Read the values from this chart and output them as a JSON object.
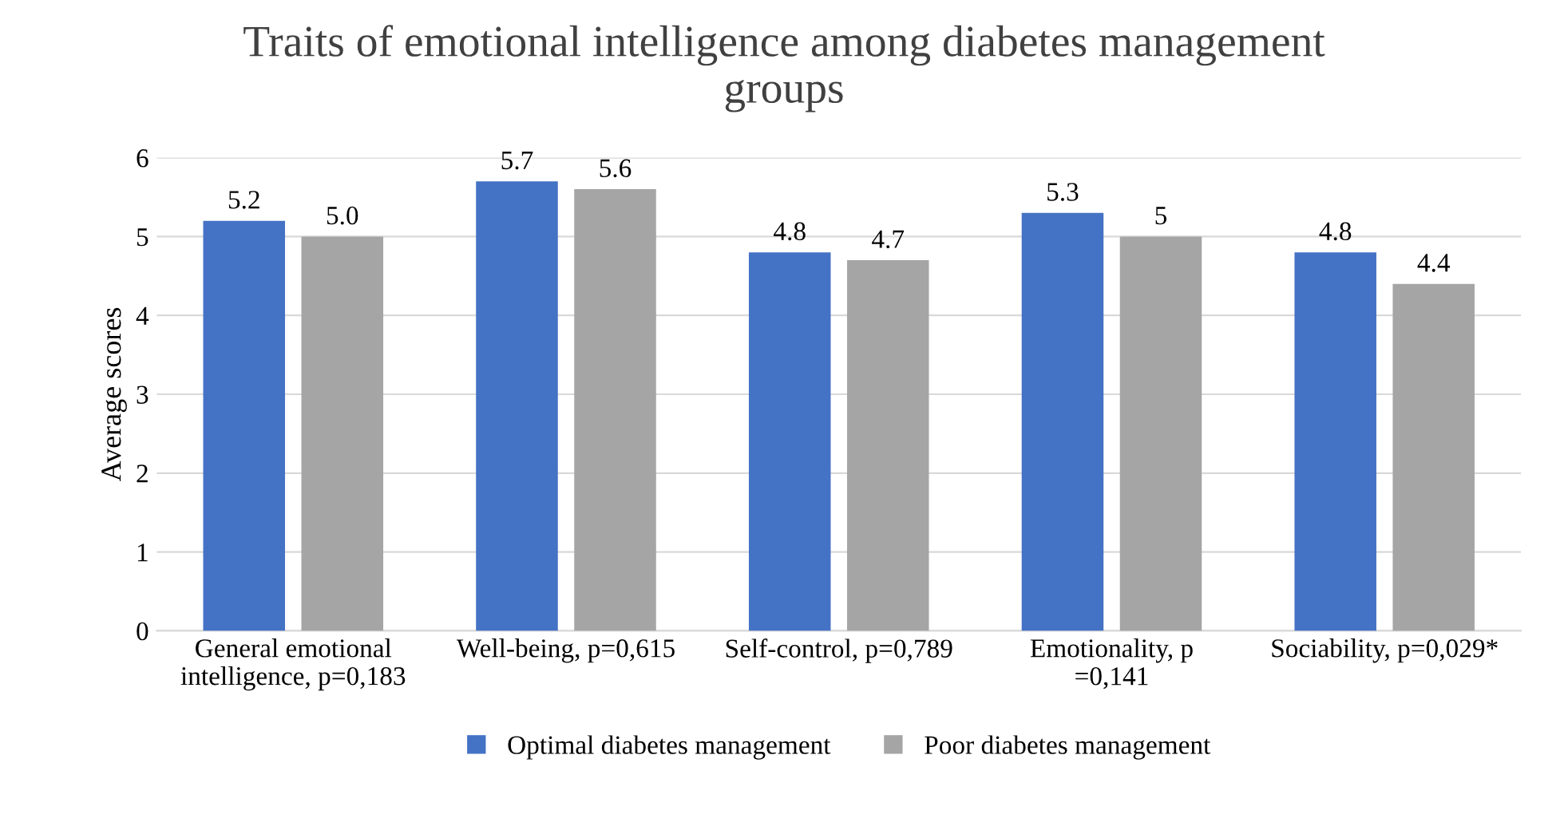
{
  "chart_data": {
    "type": "bar",
    "title": "Traits of emotional intelligence among diabetes management\ngroups",
    "ylabel": "Average scores",
    "categories": [
      "General emotional\nintelligence, p=0,183",
      "Well-being, p=0,615",
      "Self-control, p=0,789",
      "Emotionality, p\n=0,141",
      "Sociability, p=0,029*"
    ],
    "series": [
      {
        "name": "Optimal diabetes management",
        "color": "#4472c4",
        "values": [
          5.2,
          5.7,
          4.8,
          5.3,
          4.8
        ],
        "value_labels": [
          "5.2",
          "5.7",
          "4.8",
          "5.3",
          "4.8"
        ]
      },
      {
        "name": "Poor diabetes management",
        "color": "#a5a5a5",
        "values": [
          5.0,
          5.6,
          4.7,
          5,
          4.4
        ],
        "value_labels": [
          "5.0",
          "5.6",
          "4.7",
          "5",
          "4.4"
        ]
      }
    ],
    "ylim": [
      0,
      6
    ],
    "yticks": [
      0,
      1,
      2,
      3,
      4,
      5,
      6
    ],
    "grid": "y",
    "legend": "bottom"
  }
}
